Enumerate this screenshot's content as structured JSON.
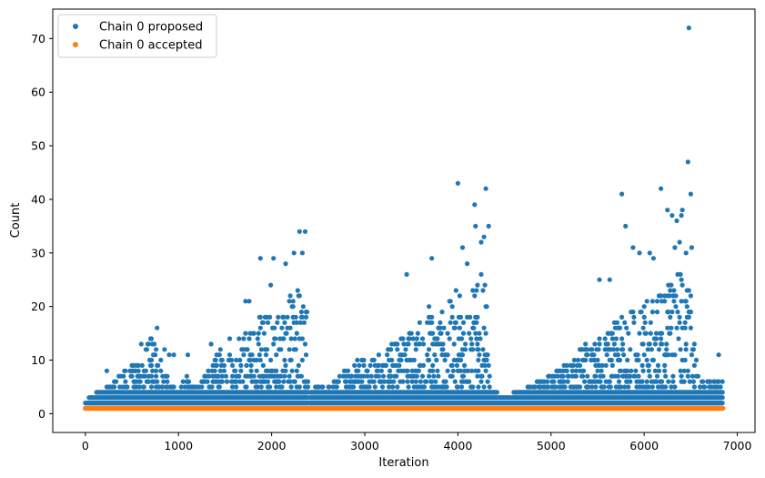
{
  "chart_data": {
    "type": "scatter",
    "xlabel": "Iteration",
    "ylabel": "Count",
    "xlim": [
      -350,
      7190
    ],
    "ylim": [
      -3.5,
      75.5
    ],
    "x_ticks": [
      0,
      1000,
      2000,
      3000,
      4000,
      5000,
      6000,
      7000
    ],
    "y_ticks": [
      0,
      10,
      20,
      30,
      40,
      50,
      60,
      70
    ],
    "x_tick_labels": [
      "0",
      "1000",
      "2000",
      "3000",
      "4000",
      "5000",
      "6000",
      "7000"
    ],
    "y_tick_labels": [
      "0",
      "10",
      "20",
      "30",
      "40",
      "50",
      "60",
      "70"
    ],
    "legend_position": "upper left",
    "grid": false,
    "series": [
      {
        "name": "Chain 0 proposed",
        "color": "#1f77b4",
        "envelope": [
          [
            0,
            2
          ],
          [
            150,
            4
          ],
          [
            250,
            5
          ],
          [
            400,
            8
          ],
          [
            550,
            9
          ],
          [
            700,
            14
          ],
          [
            800,
            11
          ],
          [
            900,
            6
          ],
          [
            1000,
            4
          ],
          [
            1100,
            7
          ],
          [
            1200,
            5
          ],
          [
            1300,
            7
          ],
          [
            1400,
            11
          ],
          [
            1500,
            13
          ],
          [
            1600,
            11
          ],
          [
            1700,
            15
          ],
          [
            1800,
            17
          ],
          [
            1900,
            19
          ],
          [
            2000,
            19
          ],
          [
            2100,
            20
          ],
          [
            2200,
            22
          ],
          [
            2300,
            23
          ],
          [
            2380,
            19
          ],
          [
            2400,
            1
          ],
          [
            2420,
            4
          ],
          [
            2500,
            5
          ],
          [
            2600,
            5
          ],
          [
            2700,
            6
          ],
          [
            2800,
            8
          ],
          [
            2900,
            10
          ],
          [
            3000,
            10
          ],
          [
            3100,
            10
          ],
          [
            3200,
            11
          ],
          [
            3300,
            13
          ],
          [
            3400,
            15
          ],
          [
            3500,
            15
          ],
          [
            3600,
            17
          ],
          [
            3700,
            20
          ],
          [
            3800,
            20
          ],
          [
            3900,
            21
          ],
          [
            4000,
            23
          ],
          [
            4100,
            22
          ],
          [
            4200,
            24
          ],
          [
            4300,
            27
          ],
          [
            4320,
            12
          ],
          [
            4350,
            4
          ],
          [
            4500,
            3
          ],
          [
            4700,
            4
          ],
          [
            4800,
            5
          ],
          [
            4900,
            6
          ],
          [
            5000,
            7
          ],
          [
            5100,
            8
          ],
          [
            5200,
            10
          ],
          [
            5300,
            12
          ],
          [
            5400,
            13
          ],
          [
            5500,
            14
          ],
          [
            5600,
            15
          ],
          [
            5700,
            17
          ],
          [
            5800,
            18
          ],
          [
            5900,
            20
          ],
          [
            6000,
            20
          ],
          [
            6100,
            22
          ],
          [
            6200,
            24
          ],
          [
            6300,
            27
          ],
          [
            6400,
            26
          ],
          [
            6500,
            24
          ],
          [
            6550,
            12
          ],
          [
            6600,
            6
          ],
          [
            6700,
            6
          ],
          [
            6840,
            6
          ]
        ],
        "outliers": [
          [
            230,
            8
          ],
          [
            500,
            7
          ],
          [
            600,
            13
          ],
          [
            680,
            13
          ],
          [
            770,
            16
          ],
          [
            850,
            12
          ],
          [
            900,
            11
          ],
          [
            950,
            11
          ],
          [
            1100,
            11
          ],
          [
            1350,
            13
          ],
          [
            1400,
            10
          ],
          [
            1550,
            14
          ],
          [
            1650,
            14
          ],
          [
            1720,
            21
          ],
          [
            1760,
            21
          ],
          [
            1880,
            29
          ],
          [
            1990,
            24
          ],
          [
            2020,
            29
          ],
          [
            2150,
            28
          ],
          [
            2200,
            22
          ],
          [
            2240,
            30
          ],
          [
            2280,
            23
          ],
          [
            2300,
            34
          ],
          [
            2330,
            30
          ],
          [
            2360,
            34
          ],
          [
            2380,
            19
          ],
          [
            3450,
            26
          ],
          [
            3720,
            29
          ],
          [
            4000,
            43
          ],
          [
            4050,
            31
          ],
          [
            4100,
            28
          ],
          [
            4180,
            39
          ],
          [
            4190,
            35
          ],
          [
            4250,
            32
          ],
          [
            4280,
            33
          ],
          [
            4300,
            42
          ],
          [
            4330,
            35
          ],
          [
            5520,
            25
          ],
          [
            5630,
            25
          ],
          [
            5760,
            41
          ],
          [
            5800,
            35
          ],
          [
            5880,
            31
          ],
          [
            5950,
            30
          ],
          [
            6060,
            30
          ],
          [
            6100,
            29
          ],
          [
            6180,
            42
          ],
          [
            6250,
            38
          ],
          [
            6300,
            37
          ],
          [
            6330,
            31
          ],
          [
            6350,
            36
          ],
          [
            6400,
            37
          ],
          [
            6380,
            32
          ],
          [
            6410,
            38
          ],
          [
            6450,
            30
          ],
          [
            6470,
            47
          ],
          [
            6480,
            72
          ],
          [
            6500,
            41
          ],
          [
            6510,
            31
          ],
          [
            6800,
            11
          ]
        ]
      },
      {
        "name": "Chain 0 accepted",
        "color": "#ff7f0e",
        "values_description_note": "",
        "y_constant": 1,
        "x_range": [
          0,
          6850
        ]
      }
    ]
  }
}
